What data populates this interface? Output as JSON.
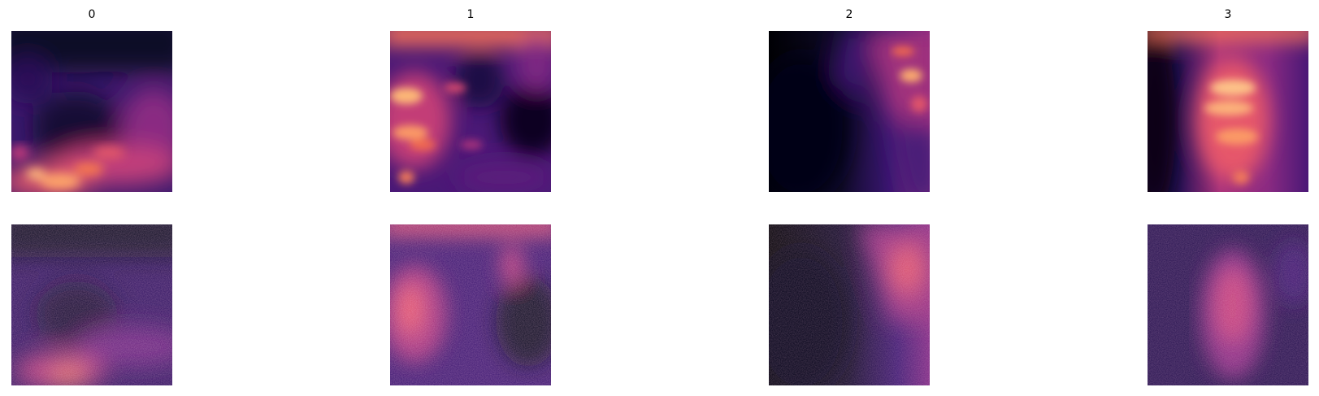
{
  "figure": {
    "columns": [
      {
        "title": "0"
      },
      {
        "title": "1"
      },
      {
        "title": "2"
      },
      {
        "title": "3"
      }
    ],
    "rows": [
      {
        "description_key": "smooth"
      },
      {
        "description_key": "noisy"
      }
    ],
    "colormap": {
      "name": "magma",
      "stops": [
        "#000004",
        "#1d1147",
        "#51127c",
        "#832681",
        "#b73779",
        "#e75263",
        "#fc8961",
        "#fec488",
        "#fcfdbf"
      ]
    }
  }
}
